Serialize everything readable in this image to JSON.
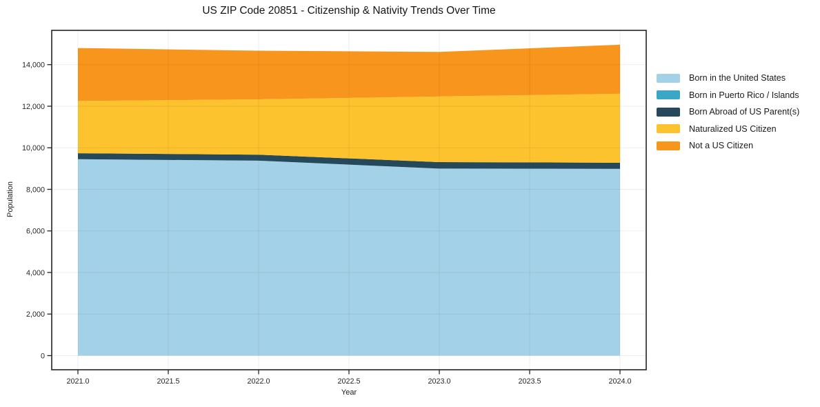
{
  "chart_data": {
    "type": "area",
    "stacked": true,
    "title": "US ZIP Code 20851 - Citizenship & Nativity Trends Over Time",
    "xlabel": "Year",
    "ylabel": "Population",
    "x": [
      2021,
      2022,
      2023,
      2024
    ],
    "series": [
      {
        "name": "Born in the United States",
        "color": "#a3d1e8",
        "values": [
          9450,
          9380,
          9000,
          8990
        ]
      },
      {
        "name": "Born in Puerto Rico / Islands",
        "color": "#3ba7c6",
        "values": [
          0,
          0,
          0,
          0
        ]
      },
      {
        "name": "Born Abroad of US Parent(s)",
        "color": "#25485a",
        "values": [
          290,
          290,
          310,
          290
        ]
      },
      {
        "name": "Naturalized US Citizen",
        "color": "#fdc32e",
        "values": [
          2510,
          2660,
          3160,
          3320
        ]
      },
      {
        "name": "Not a US Citizen",
        "color": "#f8951d",
        "values": [
          2550,
          2340,
          2140,
          2360
        ]
      }
    ],
    "stack_totals": [
      14800,
      14670,
      14610,
      14960
    ],
    "x_tick_values": [
      2021,
      2021.5,
      2022,
      2022.5,
      2023,
      2023.5,
      2024
    ],
    "x_tick_labels": [
      "2021.0",
      "2021.5",
      "2022.0",
      "2022.5",
      "2023.0",
      "2023.5",
      "2024.0"
    ],
    "y_tick_values": [
      0,
      2000,
      4000,
      6000,
      8000,
      10000,
      12000,
      14000
    ],
    "y_tick_labels": [
      "0",
      "2,000",
      "4,000",
      "6,000",
      "8,000",
      "10,000",
      "12,000",
      "14,000"
    ],
    "xlim": [
      2020.855,
      2024.145
    ],
    "ylim": [
      -680,
      15650
    ],
    "grid": true,
    "legend_position": "right",
    "colors": {
      "spine": "#222222",
      "tick_text": "#262626",
      "gridline_overlay": "rgba(0,0,0,0.065)"
    }
  }
}
